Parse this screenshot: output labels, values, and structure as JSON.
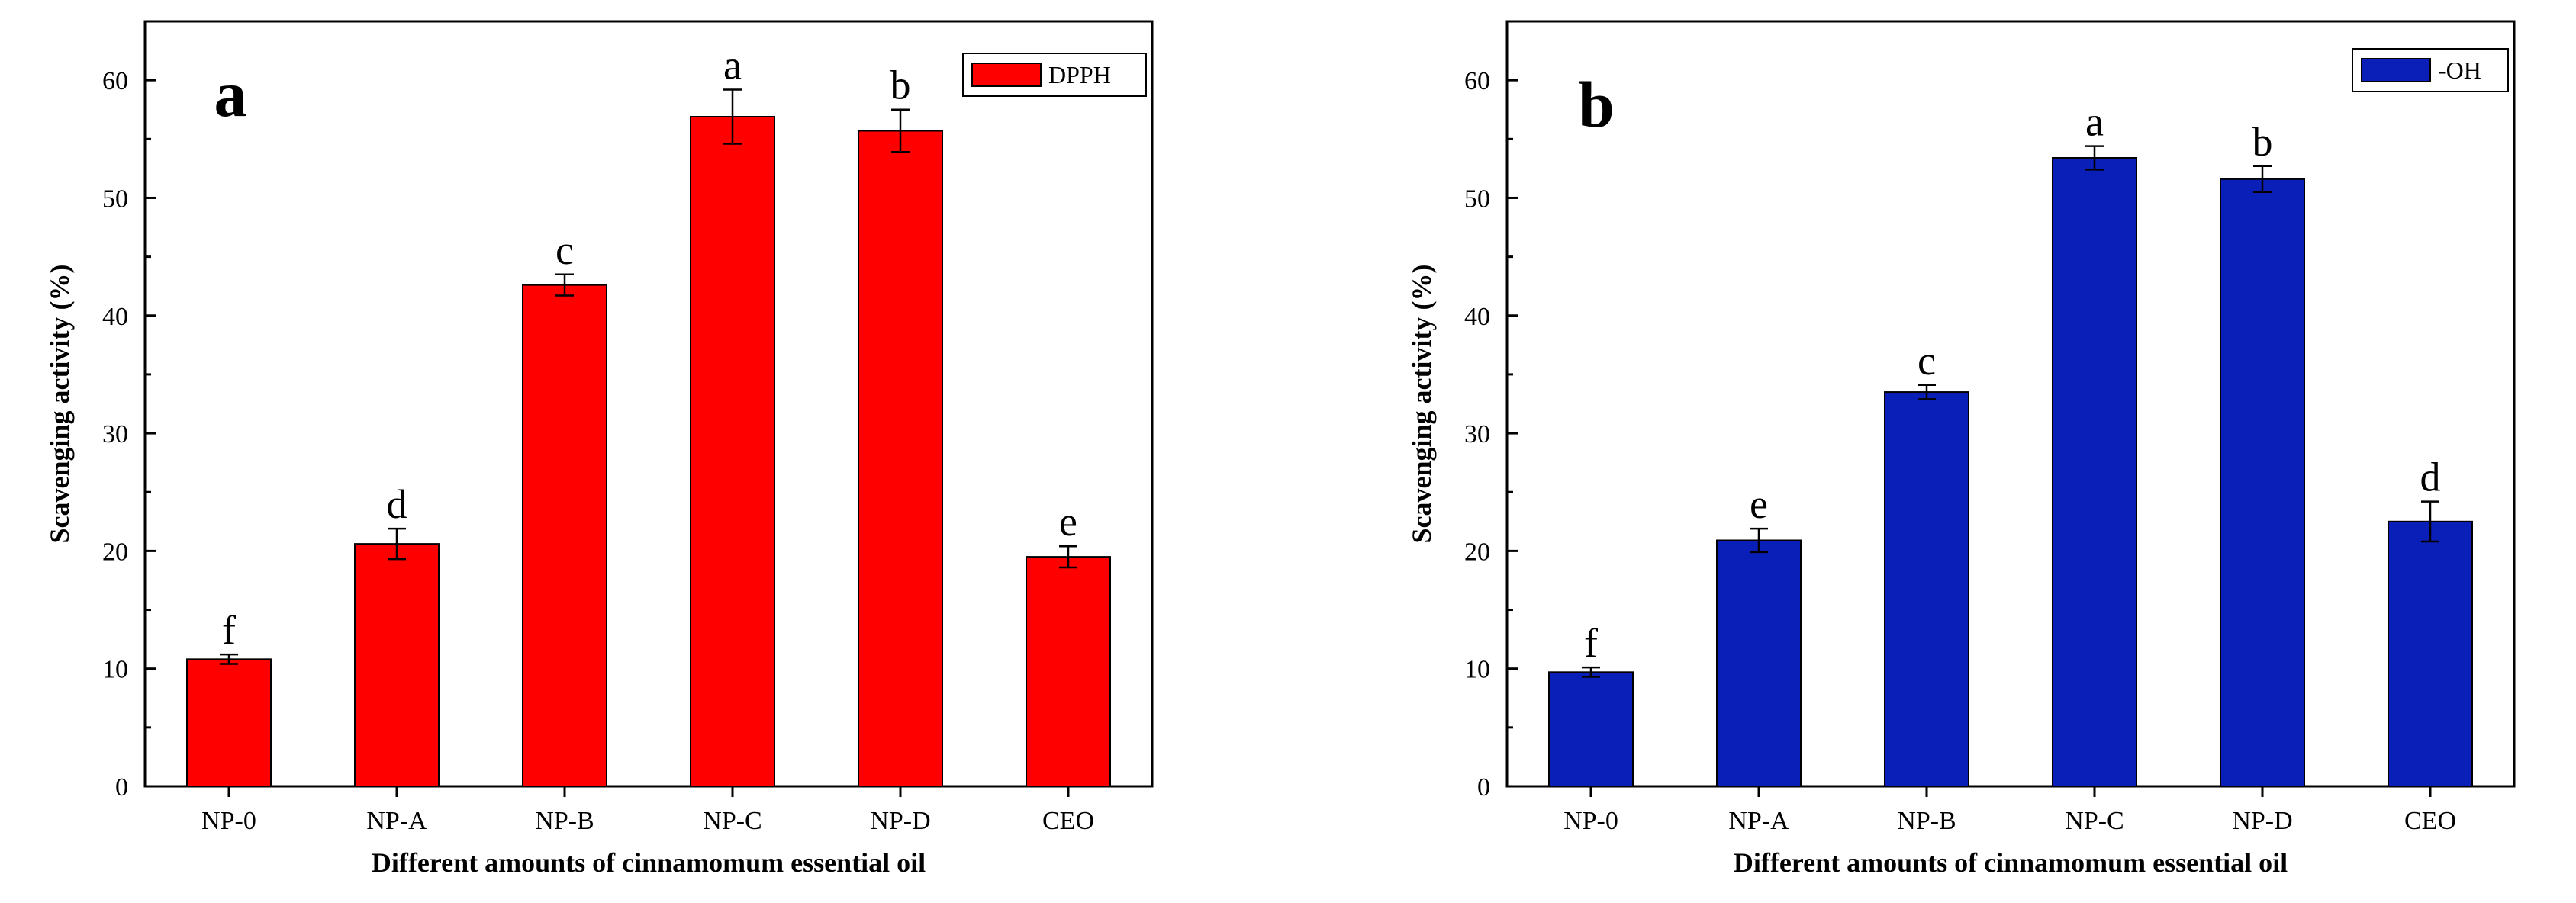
{
  "chart_data": [
    {
      "type": "bar",
      "panel_label": "a",
      "legend": "DPPH",
      "color": "#ff0000",
      "categories": [
        "NP-0",
        "NP-A",
        "NP-B",
        "NP-C",
        "NP-D",
        "CEO"
      ],
      "values": [
        10.8,
        20.6,
        42.6,
        56.9,
        55.7,
        19.5
      ],
      "errors": [
        0.4,
        1.3,
        0.9,
        2.3,
        1.8,
        0.9
      ],
      "significance": [
        "f",
        "d",
        "c",
        "a",
        "b",
        "e"
      ],
      "xlabel": "Different amounts of cinnamomum essential oil",
      "ylabel": "Scavenging activity (%)",
      "ylim": [
        0,
        65
      ],
      "yticks": [
        "0",
        "10",
        "20",
        "30",
        "40",
        "50",
        "60"
      ],
      "legend_position": "top-right"
    },
    {
      "type": "bar",
      "panel_label": "b",
      "legend": "-OH",
      "color": "#0a1eb8",
      "categories": [
        "NP-0",
        "NP-A",
        "NP-B",
        "NP-C",
        "NP-D",
        "CEO"
      ],
      "values": [
        9.7,
        20.9,
        33.5,
        53.4,
        51.6,
        22.5
      ],
      "errors": [
        0.4,
        1.0,
        0.6,
        1.0,
        1.1,
        1.7
      ],
      "significance": [
        "f",
        "e",
        "c",
        "a",
        "b",
        "d"
      ],
      "xlabel": "Different amounts of cinnamomum essential oil",
      "ylabel": "Scavenging activity (%)",
      "ylim": [
        0,
        65
      ],
      "yticks": [
        "0",
        "10",
        "20",
        "30",
        "40",
        "50",
        "60"
      ],
      "legend_position": "top-right"
    }
  ]
}
